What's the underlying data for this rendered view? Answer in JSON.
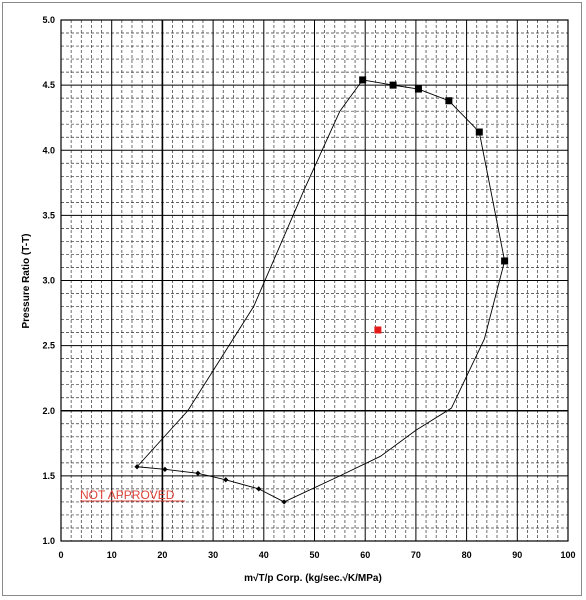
{
  "chart_data": {
    "type": "scatter",
    "title": "",
    "xlabel": "m√T/p Corp.  (kg/sec.√K/MPa)",
    "ylabel": "Pressure Ratio (T-T)",
    "xlim": [
      0,
      100
    ],
    "ylim": [
      1.0,
      5.0
    ],
    "x_ticks": [
      "0",
      "10",
      "20",
      "30",
      "40",
      "50",
      "60",
      "70",
      "80",
      "90",
      "100"
    ],
    "y_ticks": [
      "1.0",
      "1.5",
      "2.0",
      "2.5",
      "3.0",
      "3.5",
      "4.0",
      "4.5",
      "5.0"
    ],
    "grid": true,
    "series": [
      {
        "type": "line",
        "markers": "square",
        "color": "#000000",
        "points": [
          {
            "x": 59.5,
            "y": 4.54
          },
          {
            "x": 65.5,
            "y": 4.5
          },
          {
            "x": 70.5,
            "y": 4.47
          },
          {
            "x": 76.5,
            "y": 4.38
          },
          {
            "x": 82.5,
            "y": 4.14
          },
          {
            "x": 87.5,
            "y": 3.15
          }
        ]
      },
      {
        "type": "line",
        "markers": "diamond",
        "color": "#000000",
        "points": [
          {
            "x": 15.0,
            "y": 1.57
          },
          {
            "x": 20.5,
            "y": 1.55
          },
          {
            "x": 27.0,
            "y": 1.52
          },
          {
            "x": 32.5,
            "y": 1.47
          },
          {
            "x": 39.0,
            "y": 1.4
          },
          {
            "x": 44.0,
            "y": 1.3
          }
        ]
      },
      {
        "type": "line",
        "markers": "none",
        "color": "#000000",
        "points": [
          {
            "x": 15.0,
            "y": 1.57
          },
          {
            "x": 25.0,
            "y": 2.0
          },
          {
            "x": 38.0,
            "y": 2.8
          },
          {
            "x": 48.0,
            "y": 3.7
          },
          {
            "x": 55.0,
            "y": 4.3
          },
          {
            "x": 59.5,
            "y": 4.54
          }
        ]
      },
      {
        "type": "line",
        "markers": "none",
        "color": "#000000",
        "points": [
          {
            "x": 44.0,
            "y": 1.3
          },
          {
            "x": 55.0,
            "y": 1.5
          },
          {
            "x": 63.0,
            "y": 1.65
          },
          {
            "x": 70.0,
            "y": 1.85
          },
          {
            "x": 77.0,
            "y": 2.02
          },
          {
            "x": 83.5,
            "y": 2.55
          },
          {
            "x": 87.5,
            "y": 3.15
          }
        ]
      },
      {
        "type": "scatter",
        "markers": "square",
        "color": "#e21a1a",
        "points": [
          {
            "x": 62.5,
            "y": 2.62
          }
        ]
      }
    ],
    "annotation": {
      "text": "NOT APPROVED",
      "color": "#e0453a"
    }
  }
}
